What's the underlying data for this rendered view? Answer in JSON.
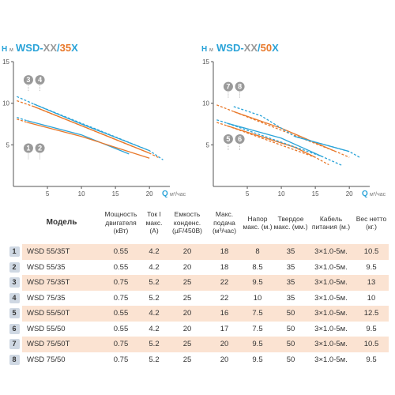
{
  "chart_data": [
    {
      "type": "line",
      "title_prefix": "WSD-",
      "title_mid": "XX",
      "title_sep": "/",
      "title_num": "35",
      "title_suffix": "X",
      "ylabel": "H",
      "ylabel_unit": "м",
      "xlabel": "Q",
      "xlabel_unit": "м³/час",
      "xlim": [
        0,
        23
      ],
      "ylim": [
        0,
        15
      ],
      "xticks": [
        "5",
        "10",
        "15",
        "20"
      ],
      "yticks": [
        "5",
        "10",
        "15"
      ],
      "markers": [
        {
          "label": "3",
          "x": 2.2,
          "y": 12.8
        },
        {
          "label": "4",
          "x": 3.9,
          "y": 12.8
        },
        {
          "label": "1",
          "x": 2.2,
          "y": 4.6
        },
        {
          "label": "2",
          "x": 3.9,
          "y": 4.6
        }
      ],
      "series": [
        {
          "color": "#2aa3d8",
          "solid": [
            [
              2,
              7.9
            ],
            [
              10,
              6.2
            ],
            [
              17,
              3.9
            ]
          ],
          "dashed": [
            [
              0.5,
              8.3
            ],
            [
              2,
              7.9
            ]
          ]
        },
        {
          "color": "#e8782a",
          "solid": [
            [
              2,
              7.7
            ],
            [
              10,
              6.0
            ],
            [
              20,
              3.4
            ]
          ],
          "dashed": [
            [
              0.5,
              8.1
            ],
            [
              2,
              7.7
            ]
          ]
        },
        {
          "color": "#2aa3d8",
          "solid": [
            [
              3,
              9.9
            ],
            [
              10,
              7.5
            ],
            [
              20,
              4.3
            ]
          ],
          "dashed": [
            [
              0.5,
              10.8
            ],
            [
              3,
              9.9
            ],
            [
              20,
              4.3
            ],
            [
              22,
              3.2
            ]
          ]
        },
        {
          "color": "#e8782a",
          "solid": [
            [
              3,
              9.6
            ],
            [
              10,
              7.3
            ],
            [
              20,
              4.0
            ]
          ],
          "dashed": [
            [
              0.5,
              10.3
            ],
            [
              3,
              9.6
            ],
            [
              20,
              4.0
            ],
            [
              21.5,
              3.4
            ]
          ]
        }
      ]
    },
    {
      "type": "line",
      "title_prefix": "WSD-",
      "title_mid": "XX",
      "title_sep": "/",
      "title_num": "50",
      "title_suffix": "X",
      "ylabel": "H",
      "ylabel_unit": "м",
      "xlabel": "Q",
      "xlabel_unit": "м³/час",
      "xlim": [
        0,
        23
      ],
      "ylim": [
        0,
        15
      ],
      "xticks": [
        "5",
        "10",
        "15",
        "20"
      ],
      "yticks": [
        "5",
        "10",
        "15"
      ],
      "markers": [
        {
          "label": "7",
          "x": 2.2,
          "y": 12.0
        },
        {
          "label": "8",
          "x": 3.9,
          "y": 12.0
        },
        {
          "label": "5",
          "x": 2.2,
          "y": 5.7
        },
        {
          "label": "6",
          "x": 3.9,
          "y": 5.7
        }
      ],
      "series": [
        {
          "color": "#e8782a",
          "solid": [
            [
              2,
              7.3
            ],
            [
              12,
              4.7
            ],
            [
              15,
              3.5
            ]
          ],
          "dashed": [
            [
              0.5,
              7.7
            ],
            [
              2,
              7.3
            ],
            [
              15,
              3.5
            ],
            [
              17,
              2.6
            ]
          ]
        },
        {
          "color": "#2aa3d8",
          "solid": [
            [
              2,
              7.6
            ],
            [
              10,
              5.8
            ],
            [
              16,
              3.6
            ]
          ],
          "dashed": [
            [
              0.5,
              8.0
            ],
            [
              2,
              7.6
            ],
            [
              16,
              3.6
            ],
            [
              19,
              2.5
            ]
          ]
        },
        {
          "color": "#e8782a",
          "solid": [
            [
              3,
              9.0
            ],
            [
              10,
              7.0
            ],
            [
              18,
              4.2
            ]
          ],
          "dashed": [
            [
              0.5,
              9.8
            ],
            [
              3,
              9.0
            ],
            [
              18,
              4.2
            ],
            [
              20,
              3.5
            ]
          ]
        },
        {
          "color": "#2aa3d8",
          "solid": [
            [
              12,
              6.0
            ],
            [
              20,
              4.2
            ]
          ],
          "dashed": [
            [
              3,
              9.6
            ],
            [
              7,
              8.5
            ],
            [
              12,
              6.0
            ],
            [
              20,
              4.2
            ],
            [
              21.5,
              3.5
            ]
          ]
        }
      ]
    }
  ],
  "table": {
    "headers": [
      "Модель",
      "Мощность двигателя (кВт)",
      "Ток I макс. (A)",
      "Емкость конденс. (µF/450В)",
      "Макс. подача (м³/час)",
      "Напор макс. (м.)",
      "Твердое макс. (мм.)",
      "Кабель питания (м.)",
      "Вес нетто (кг.)"
    ],
    "rows": [
      {
        "num": "1",
        "model": "WSD 55/35T",
        "power": "0.55",
        "current": "4.2",
        "cap": "20",
        "flow": "18",
        "head": "8",
        "solid": "35",
        "cable": "3×1.0-5м.",
        "weight": "10.5"
      },
      {
        "num": "2",
        "model": "WSD 55/35",
        "power": "0.55",
        "current": "4.2",
        "cap": "20",
        "flow": "18",
        "head": "8.5",
        "solid": "35",
        "cable": "3×1.0-5м.",
        "weight": "9.5"
      },
      {
        "num": "3",
        "model": "WSD 75/35T",
        "power": "0.75",
        "current": "5.2",
        "cap": "25",
        "flow": "22",
        "head": "9.5",
        "solid": "35",
        "cable": "3×1.0-5м.",
        "weight": "13"
      },
      {
        "num": "4",
        "model": "WSD 75/35",
        "power": "0.75",
        "current": "5.2",
        "cap": "25",
        "flow": "22",
        "head": "10",
        "solid": "35",
        "cable": "3×1.0-5м.",
        "weight": "10"
      },
      {
        "num": "5",
        "model": "WSD 55/50T",
        "power": "0.55",
        "current": "4.2",
        "cap": "20",
        "flow": "16",
        "head": "7.5",
        "solid": "50",
        "cable": "3×1.0-5м.",
        "weight": "12.5"
      },
      {
        "num": "6",
        "model": "WSD 55/50",
        "power": "0.55",
        "current": "4.2",
        "cap": "20",
        "flow": "17",
        "head": "7.5",
        "solid": "50",
        "cable": "3×1.0-5м.",
        "weight": "9.5"
      },
      {
        "num": "7",
        "model": "WSD 75/50T",
        "power": "0.75",
        "current": "5.2",
        "cap": "25",
        "flow": "20",
        "head": "9.5",
        "solid": "50",
        "cable": "3×1.0-5м.",
        "weight": "10.5"
      },
      {
        "num": "8",
        "model": "WSD 75/50",
        "power": "0.75",
        "current": "5.2",
        "cap": "25",
        "flow": "20",
        "head": "9.5",
        "solid": "50",
        "cable": "3×1.0-5м.",
        "weight": "9.5"
      }
    ]
  },
  "colors": {
    "blue": "#2aa3d8",
    "orange": "#e8782a",
    "dark": "#555555"
  }
}
